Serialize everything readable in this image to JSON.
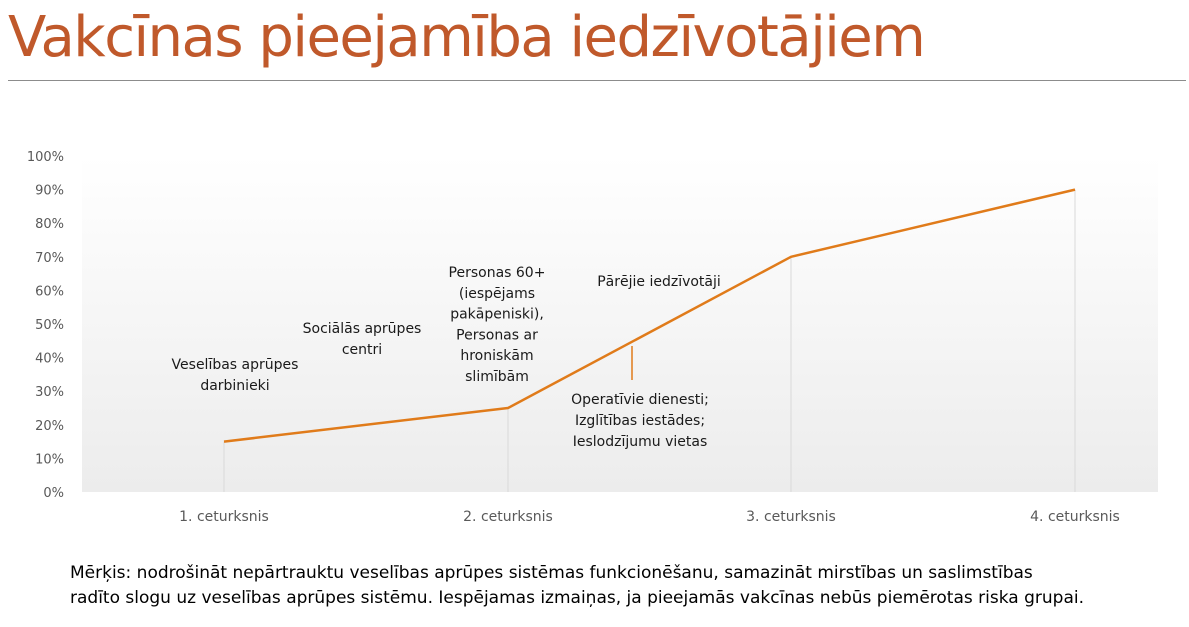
{
  "title": "Vakcīnas pieejamība iedzīvotājiem",
  "colors": {
    "title": "#c0592b",
    "line": "#e07b1a",
    "axis_text": "#595959"
  },
  "chart_data": {
    "type": "line",
    "categories": [
      "1. ceturksnis",
      "2. ceturksnis",
      "3. ceturksnis",
      "4. ceturksnis"
    ],
    "values": [
      0.15,
      0.25,
      0.7,
      0.9
    ],
    "y_ticks": [
      "0%",
      "10%",
      "20%",
      "30%",
      "40%",
      "50%",
      "60%",
      "70%",
      "80%",
      "90%",
      "100%"
    ],
    "ylim": [
      0,
      1
    ],
    "grid": false,
    "legend": "none",
    "annotations": [
      {
        "id": "healthcare-workers",
        "lines": [
          "Veselības aprūpes",
          "darbinieki"
        ]
      },
      {
        "id": "social-care",
        "lines": [
          "Sociālās aprūpes",
          "centri"
        ]
      },
      {
        "id": "seniors",
        "lines": [
          "Personas 60+",
          "(iespējams",
          "pakāpeniski),",
          "Personas ar",
          "hroniskām",
          "slimībām"
        ]
      },
      {
        "id": "rest",
        "lines": [
          "Pārējie iedzīvotāji"
        ]
      },
      {
        "id": "services",
        "lines": [
          "Operatīvie dienesti;",
          "Izglītības iestādes;",
          "Ieslodzījumu vietas"
        ]
      }
    ]
  },
  "goal_text": {
    "line1": "Mērķis:  nodrošināt nepārtrauktu veselības aprūpes sistēmas funkcionēšanu, samazināt mirstības un saslimstības",
    "line2": "radīto slogu uz veselības aprūpes sistēmu. Iespējamas izmaiņas, ja pieejamās vakcīnas nebūs piemērotas riska grupai."
  }
}
